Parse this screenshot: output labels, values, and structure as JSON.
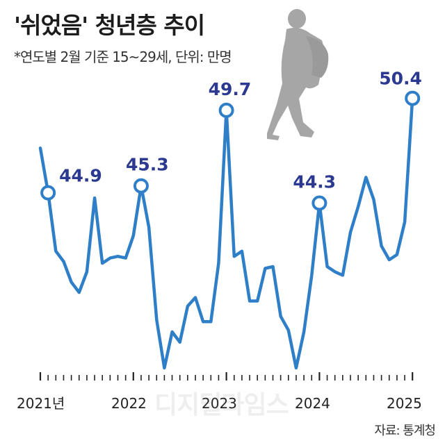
{
  "title": "'쉬었음' 청년층 추이",
  "subtitle": "*연도별 2월 기준 15~29세, 단위: 만명",
  "source": "자료: 통계청",
  "watermark": "디지털타임스",
  "colors": {
    "line": "#2f7fc8",
    "label": "#2b3990",
    "axis": "#222222",
    "silhouette": "#a6a6a6"
  },
  "icons": [
    "walking-person-silhouette"
  ],
  "chart_data": {
    "type": "line",
    "xlabel": "",
    "ylabel": "",
    "year_labels": [
      "2021년",
      "2022",
      "2023",
      "2024",
      "2025"
    ],
    "ylim": [
      33,
      52
    ],
    "grid": false,
    "values": [
      47.5,
      44.9,
      41.5,
      40.9,
      39.7,
      39.1,
      40.3,
      44.6,
      40.8,
      41.1,
      41.2,
      41.1,
      42.4,
      45.3,
      42.9,
      37.5,
      34.7,
      36.8,
      36.2,
      38.3,
      38.8,
      37.4,
      37.4,
      40.8,
      49.7,
      41.2,
      41.5,
      38.6,
      38.6,
      40.5,
      40.6,
      37.7,
      36.9,
      34.7,
      36.8,
      40.1,
      44.3,
      40.6,
      40.3,
      40.1,
      42.6,
      44.1,
      45.8,
      44.5,
      41.8,
      41,
      41.3,
      43.2,
      50.4
    ],
    "labeled_points": [
      {
        "index": 1,
        "label": "44.9"
      },
      {
        "index": 13,
        "label": "45.3"
      },
      {
        "index": 24,
        "label": "49.7"
      },
      {
        "index": 36,
        "label": "44.3"
      },
      {
        "index": 48,
        "label": "50.4"
      }
    ]
  }
}
